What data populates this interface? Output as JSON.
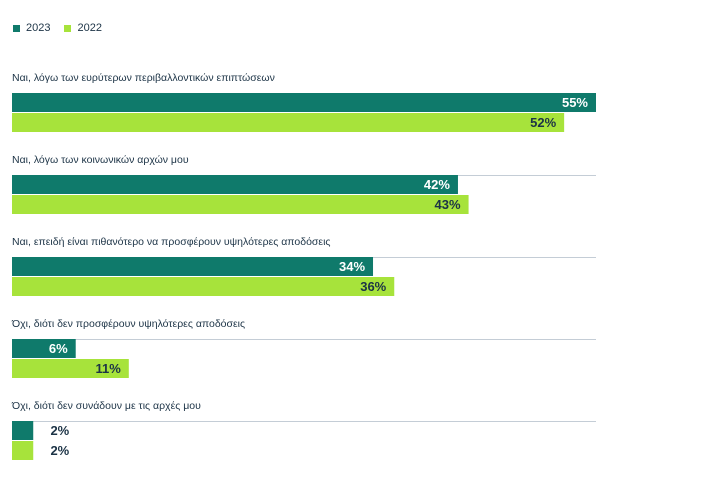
{
  "chart_data": {
    "type": "bar",
    "orientation": "horizontal",
    "categories": [
      "Ναι, λόγω των ευρύτερων περιβαλλοντικών επιπτώσεων",
      "Ναι, λόγω των κοινωνικών αρχών μου",
      "Ναι, επειδή είναι πιθανότερο να προσφέρουν υψηλότερες αποδόσεις",
      "Όχι, διότι δεν προσφέρουν υψηλότερες αποδόσεις",
      "Όχι, διότι δεν συνάδουν με τις αρχές μου"
    ],
    "series": [
      {
        "name": "2023",
        "color": "#0f7a6b",
        "values": [
          55,
          42,
          34,
          6,
          2
        ],
        "labels": [
          "55%",
          "42%",
          "34%",
          "6%",
          "2%"
        ]
      },
      {
        "name": "2022",
        "color": "#a7e33b",
        "values": [
          52,
          43,
          36,
          11,
          2
        ],
        "labels": [
          "52%",
          "43%",
          "36%",
          "11%",
          "2%"
        ]
      }
    ],
    "xlim": [
      0,
      55
    ],
    "legend_position": "top-left",
    "grid": false
  }
}
